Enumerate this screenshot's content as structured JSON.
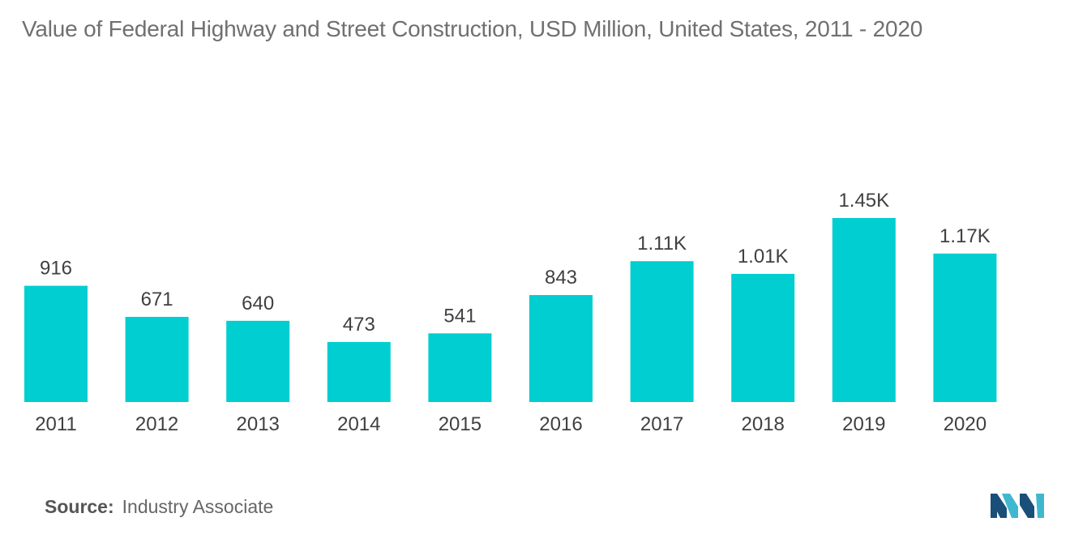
{
  "chart_data": {
    "type": "bar",
    "title": "Value of Federal Highway and Street Construction, USD Million, United States, 2011 - 2020",
    "categories": [
      "2011",
      "2012",
      "2013",
      "2014",
      "2015",
      "2016",
      "2017",
      "2018",
      "2019",
      "2020"
    ],
    "values": [
      916,
      671,
      640,
      473,
      541,
      843,
      1110,
      1010,
      1450,
      1170
    ],
    "data_labels": [
      "916",
      "671",
      "640",
      "473",
      "541",
      "843",
      "1.11K",
      "1.01K",
      "1.45K",
      "1.17K"
    ],
    "xlabel": "",
    "ylabel": "",
    "ylim": [
      0,
      1450
    ],
    "grid": false,
    "legend": "none",
    "bar_color": "#00ced1"
  },
  "source": {
    "label": "Source:",
    "text": "Industry Associate"
  },
  "logo": {
    "icon": "mordor-intelligence-logo-icon",
    "colors": [
      "#1a4f7a",
      "#3fb8cf"
    ]
  }
}
